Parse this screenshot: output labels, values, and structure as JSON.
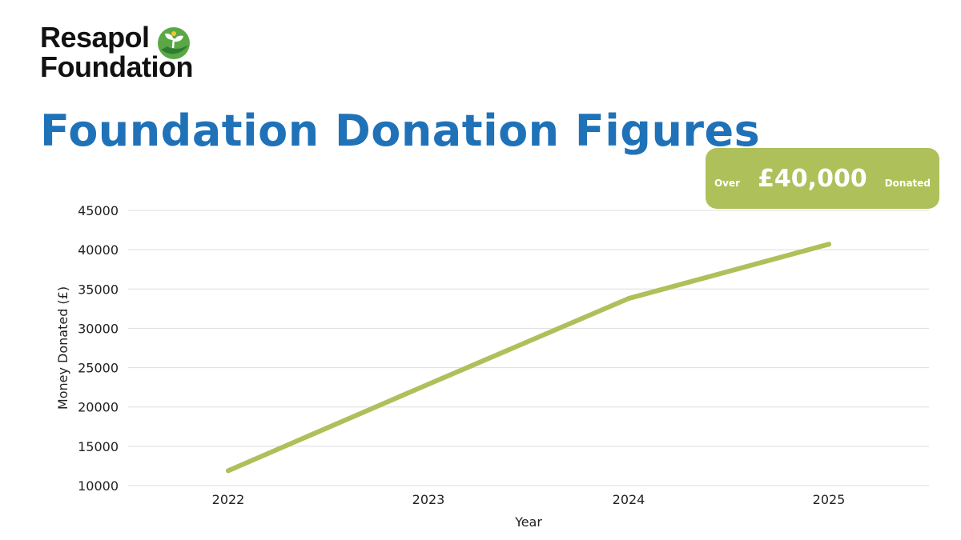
{
  "brand": {
    "line1": "Resapol",
    "line2": "Foundation",
    "icon": "seedling-hand-icon"
  },
  "page_title": "Foundation Donation Figures",
  "badge": {
    "prefix": "Over",
    "amount": "£40,000",
    "suffix": "Donated",
    "color": "#aec05a"
  },
  "colors": {
    "title": "#1f72b8",
    "line": "#aec05a",
    "grid": "#dddddd"
  },
  "chart_data": {
    "type": "line",
    "categories": [
      "2022",
      "2023",
      "2024",
      "2025"
    ],
    "series": [
      {
        "values": [
          11900,
          22900,
          33800,
          40700
        ]
      }
    ],
    "title": "",
    "xlabel": "Year",
    "ylabel": "Money Donated (£)",
    "ylim": [
      10000,
      45000
    ],
    "yticks": [
      10000,
      15000,
      20000,
      25000,
      30000,
      35000,
      40000,
      45000
    ],
    "grid": true,
    "legend": "none"
  }
}
